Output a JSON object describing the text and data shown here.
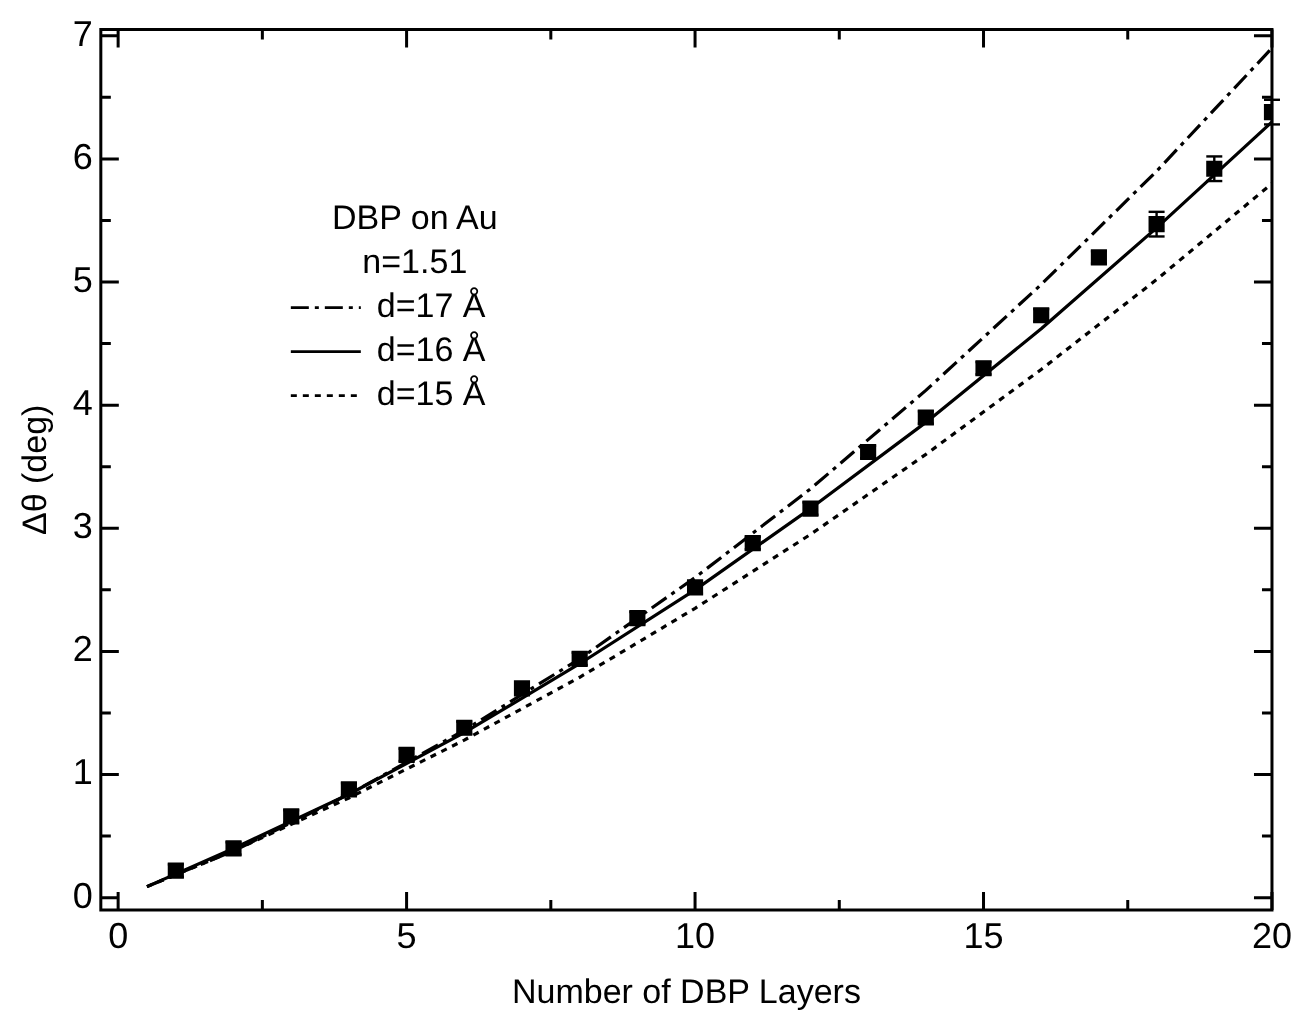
{
  "chart_data": {
    "type": "scatter",
    "xlabel": "Number of DBP Layers",
    "ylabel": "Δθ (deg)",
    "legend_title": "DBP on Au\nn=1.51",
    "legend": "top left",
    "grid": false,
    "marker": "square",
    "xlim": [
      -0.3,
      20
    ],
    "ylim": [
      -0.1,
      7.05
    ],
    "xticks": [
      0,
      {
        "value": 2.5,
        "label": null
      },
      5,
      {
        "value": 7.5,
        "label": null
      },
      10,
      {
        "value": 12.5,
        "label": null
      },
      15,
      {
        "value": 17.5,
        "label": null
      },
      20
    ],
    "yticks": [
      0,
      {
        "value": 0.5,
        "label": null
      },
      1,
      {
        "value": 1.5,
        "label": null
      },
      2,
      {
        "value": 2.5,
        "label": null
      },
      3,
      {
        "value": 3.5,
        "label": null
      },
      4,
      {
        "value": 4.5,
        "label": null
      },
      5,
      {
        "value": 5.5,
        "label": null
      },
      6,
      {
        "value": 6.5,
        "label": null
      },
      7
    ],
    "series": [
      {
        "color": "#000000",
        "x": [
          1,
          2,
          3,
          4,
          5,
          6,
          7,
          8,
          9,
          10,
          11,
          12,
          13,
          14,
          15,
          16,
          17,
          18,
          19,
          20
        ],
        "values": [
          0.22,
          0.4,
          0.66,
          0.88,
          1.16,
          1.38,
          1.7,
          1.94,
          2.27,
          2.52,
          2.88,
          3.16,
          3.62,
          3.9,
          4.3,
          4.73,
          5.2,
          5.47,
          5.92,
          6.38
        ],
        "errors": [
          0.05,
          0.05,
          0.05,
          0.05,
          0.05,
          0.05,
          0.05,
          0.05,
          0.05,
          0.05,
          0.05,
          0.05,
          0.05,
          0.05,
          0.05,
          0.05,
          0.05,
          0.1,
          0.1,
          0.1
        ]
      },
      {
        "type": "line",
        "name": "d=17 Å",
        "color": "#000000",
        "line_style": "dashed",
        "marker": "none",
        "x": [
          0.5,
          2,
          4,
          6,
          8,
          10,
          12,
          14,
          16,
          18,
          20
        ],
        "values": [
          0.09,
          0.38,
          0.84,
          1.36,
          1.94,
          2.6,
          3.32,
          4.12,
          4.98,
          5.9,
          6.9
        ]
      },
      {
        "type": "line",
        "name": "d=16 Å",
        "color": "#000000",
        "line_style": "solid",
        "marker": "none",
        "x": [
          0.5,
          2,
          4,
          6,
          8,
          10,
          12,
          14,
          16,
          18,
          20
        ],
        "values": [
          0.09,
          0.4,
          0.84,
          1.34,
          1.9,
          2.5,
          3.16,
          3.86,
          4.62,
          5.44,
          6.3
        ]
      },
      {
        "type": "line",
        "name": "d=15 Å",
        "color": "#000000",
        "line_style": "dotted",
        "marker": "none",
        "x": [
          0.5,
          2,
          4,
          6,
          8,
          10,
          12,
          14,
          16,
          18,
          20
        ],
        "values": [
          0.09,
          0.38,
          0.81,
          1.28,
          1.79,
          2.35,
          2.95,
          3.6,
          4.29,
          5.02,
          5.8
        ]
      }
    ]
  }
}
